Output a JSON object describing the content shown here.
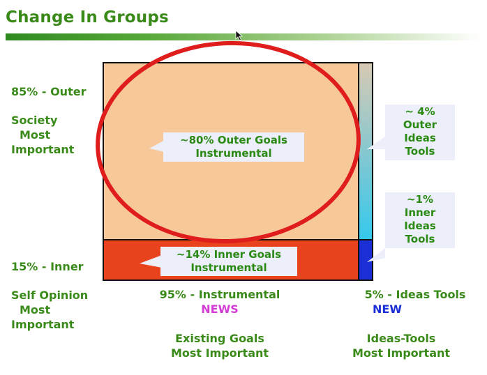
{
  "header": {
    "title": "Change In Groups"
  },
  "left_labels": {
    "outer_pct": "85% - Outer",
    "outer_desc": [
      "Society",
      "Most",
      "Important"
    ],
    "inner_pct": "15% - Inner",
    "inner_desc": [
      "Self Opinion",
      "Most",
      "Important"
    ]
  },
  "bottom_labels": {
    "instrumental_pct": "95% - Instrumental",
    "instrumental_tag": "NEWS",
    "instrumental_desc": [
      "Existing Goals",
      "Most Important"
    ],
    "ideas_pct": "5% - Ideas Tools",
    "ideas_tag": "NEW",
    "ideas_desc": [
      "Ideas-Tools",
      "Most Important"
    ]
  },
  "callouts": {
    "outer_goals": [
      "~80% Outer Goals",
      "Instrumental"
    ],
    "inner_goals": [
      "~14% Inner Goals",
      "Instrumental"
    ],
    "outer_ideas": [
      "~ 4%",
      "Outer",
      "Ideas",
      "Tools"
    ],
    "inner_ideas": [
      "~1%",
      "Inner",
      "Ideas",
      "Tools"
    ]
  },
  "colors": {
    "title_green": "#3a8a1a",
    "outer_goals_fill": "#f7c99a",
    "inner_goals_fill": "#e8431c",
    "outer_ideas_gradient_top": "#d8c9b4",
    "outer_ideas_gradient_bottom": "#35c8ec",
    "inner_ideas_fill": "#1a2fd6",
    "ellipse_stroke": "#e01d1d",
    "callout_fill": "#eceef9",
    "news_tag": "#d43ad4",
    "new_tag": "#1a2fd6"
  }
}
